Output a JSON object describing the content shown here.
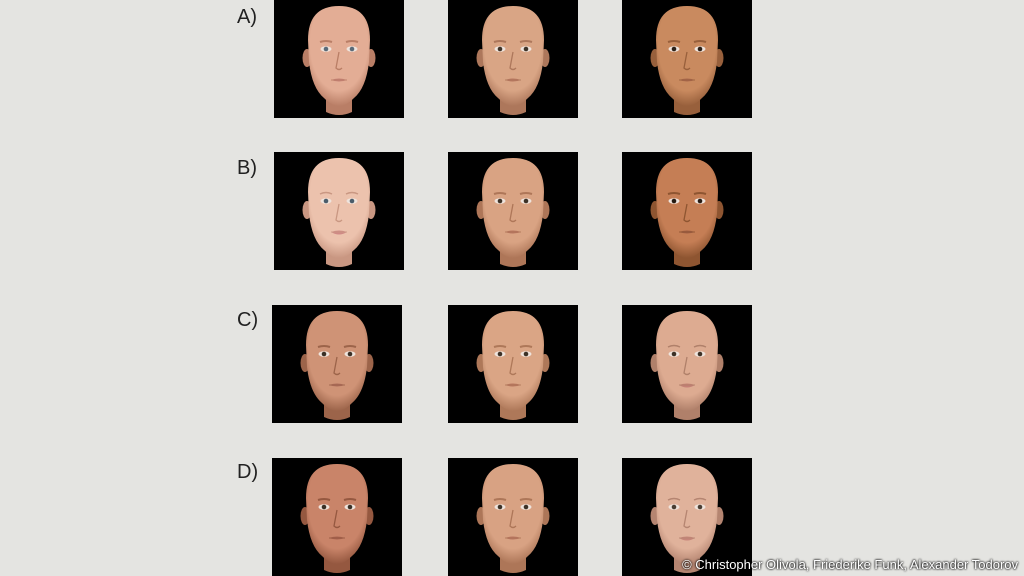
{
  "rows": [
    {
      "label": "A)",
      "faces": [
        {
          "skin": "#e3ad95",
          "shade": "#b97e66",
          "lip": "#c47f74",
          "eye": "#5a6a78",
          "gender": "male"
        },
        {
          "skin": "#d9a585",
          "shade": "#ad775b",
          "lip": "#b7755f",
          "eye": "#3e3328",
          "gender": "male"
        },
        {
          "skin": "#c98a5f",
          "shade": "#98603c",
          "lip": "#a8664c",
          "eye": "#2b2018",
          "gender": "male"
        }
      ]
    },
    {
      "label": "B)",
      "faces": [
        {
          "skin": "#ecc2ad",
          "shade": "#c99782",
          "lip": "#d08a86",
          "eye": "#4a5c6a",
          "gender": "female"
        },
        {
          "skin": "#d9a383",
          "shade": "#ae7658",
          "lip": "#b8755f",
          "eye": "#3c3126",
          "gender": "male"
        },
        {
          "skin": "#c57e55",
          "shade": "#8e5531",
          "lip": "#a05e45",
          "eye": "#251a12",
          "gender": "male"
        }
      ]
    },
    {
      "label": "C)",
      "faces": [
        {
          "skin": "#cf9376",
          "shade": "#9c644a",
          "lip": "#ad6c5a",
          "eye": "#3a3026",
          "gender": "male"
        },
        {
          "skin": "#daa585",
          "shade": "#ae7859",
          "lip": "#b9755f",
          "eye": "#3c3126",
          "gender": "male"
        },
        {
          "skin": "#ddab91",
          "shade": "#b0806a",
          "lip": "#c58076",
          "eye": "#3c3126",
          "gender": "female"
        }
      ]
    },
    {
      "label": "D)",
      "faces": [
        {
          "skin": "#c98469",
          "shade": "#955840",
          "lip": "#a8634f",
          "eye": "#3a3026",
          "gender": "male"
        },
        {
          "skin": "#d8a283",
          "shade": "#ad7658",
          "lip": "#b8745f",
          "eye": "#3c3126",
          "gender": "male"
        },
        {
          "skin": "#e0b29b",
          "shade": "#b58571",
          "lip": "#c7857a",
          "eye": "#4a3e33",
          "gender": "female"
        }
      ]
    }
  ],
  "credit": "© Christopher Olivola, Friederike Funk, Alexander Todorov",
  "colors": {
    "background": "#e4e4e1",
    "card": "#000000"
  }
}
